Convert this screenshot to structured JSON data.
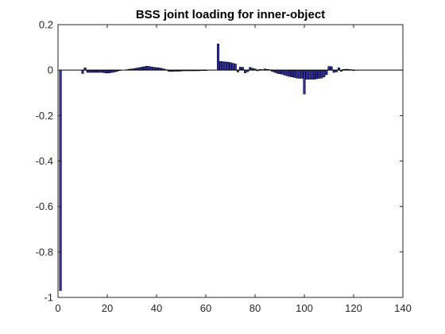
{
  "chart_data": {
    "type": "bar",
    "title": "BSS joint loading for inner-object",
    "xlabel": "",
    "ylabel": "",
    "xlim": [
      0,
      140
    ],
    "ylim": [
      -1,
      0.2
    ],
    "xticks": [
      0,
      20,
      40,
      60,
      80,
      100,
      120,
      140
    ],
    "yticks": [
      0.2,
      0,
      -0.2,
      -0.4,
      -0.6,
      -0.8,
      -1
    ],
    "xtick_labels": [
      "0",
      "20",
      "40",
      "60",
      "80",
      "100",
      "120",
      "140"
    ],
    "ytick_labels": [
      "0.2",
      "0",
      "-0.2",
      "-0.4",
      "-0.6",
      "-0.8",
      "-1"
    ],
    "grid": false,
    "bar_color": "#3030b8",
    "edge_color": "#000000",
    "x": [
      1,
      2,
      3,
      4,
      5,
      6,
      7,
      8,
      9,
      10,
      11,
      12,
      13,
      14,
      15,
      16,
      17,
      18,
      19,
      20,
      21,
      22,
      23,
      24,
      25,
      26,
      27,
      28,
      29,
      30,
      31,
      32,
      33,
      34,
      35,
      36,
      37,
      38,
      39,
      40,
      41,
      42,
      43,
      44,
      45,
      46,
      47,
      48,
      49,
      50,
      51,
      52,
      53,
      54,
      55,
      56,
      57,
      58,
      59,
      60,
      61,
      62,
      63,
      64,
      65,
      66,
      67,
      68,
      69,
      70,
      71,
      72,
      73,
      74,
      75,
      76,
      77,
      78,
      79,
      80,
      81,
      82,
      83,
      84,
      85,
      86,
      87,
      88,
      89,
      90,
      91,
      92,
      93,
      94,
      95,
      96,
      97,
      98,
      99,
      100,
      101,
      102,
      103,
      104,
      105,
      106,
      107,
      108,
      109,
      110,
      111,
      112,
      113,
      114,
      115,
      116,
      117,
      118,
      119,
      120,
      121,
      122,
      123,
      124,
      125
    ],
    "values": [
      -0.97,
      0,
      0,
      0,
      0,
      0,
      0,
      0,
      0,
      -0.015,
      0.01,
      -0.01,
      -0.01,
      -0.01,
      -0.01,
      -0.01,
      -0.01,
      -0.01,
      -0.012,
      -0.013,
      -0.012,
      -0.01,
      -0.008,
      -0.005,
      -0.002,
      0,
      0,
      0.002,
      0.004,
      0.005,
      0.007,
      0.009,
      0.011,
      0.013,
      0.015,
      0.017,
      0.016,
      0.014,
      0.012,
      0.011,
      0.01,
      0.008,
      0.005,
      0.002,
      -0.005,
      -0.006,
      -0.005,
      -0.005,
      -0.005,
      -0.004,
      -0.003,
      -0.003,
      -0.003,
      -0.003,
      -0.003,
      -0.003,
      -0.003,
      -0.002,
      -0.002,
      -0.002,
      0,
      0,
      0,
      0,
      0.115,
      0.038,
      0.037,
      0.036,
      0.035,
      0.033,
      0.03,
      0.027,
      -0.008,
      0.013,
      0.012,
      -0.012,
      -0.007,
      0.012,
      0.008,
      0.005,
      -0.003,
      0.003,
      0.002,
      0.005,
      0.003,
      0.002,
      -0.006,
      -0.01,
      -0.014,
      -0.016,
      -0.018,
      -0.022,
      -0.025,
      -0.028,
      -0.03,
      -0.032,
      -0.035,
      -0.036,
      -0.036,
      -0.105,
      -0.04,
      -0.04,
      -0.04,
      -0.04,
      -0.038,
      -0.036,
      -0.035,
      -0.03,
      -0.02,
      0.016,
      0.015,
      -0.01,
      -0.008,
      0.01,
      -0.005,
      0.003,
      0.004,
      0.003,
      0.002,
      -0.002,
      0,
      0,
      0,
      0,
      0
    ]
  }
}
